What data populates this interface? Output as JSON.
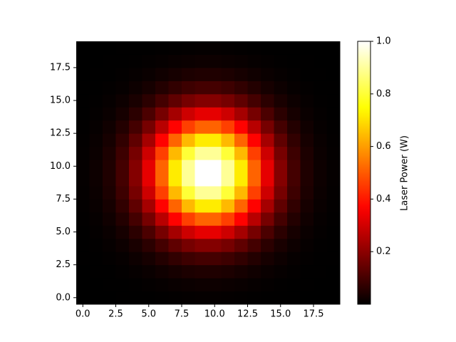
{
  "chart_data": {
    "type": "heatmap",
    "colormap": "hot",
    "colorbar_label": "Laser Power (W)",
    "x": [
      0,
      1,
      2,
      3,
      4,
      5,
      6,
      7,
      8,
      9,
      10,
      11,
      12,
      13,
      14,
      15,
      16,
      17,
      18,
      19
    ],
    "y": [
      0,
      1,
      2,
      3,
      4,
      5,
      6,
      7,
      8,
      9,
      10,
      11,
      12,
      13,
      14,
      15,
      16,
      17,
      18,
      19
    ],
    "values": [
      [
        0.0,
        0.0,
        0.0,
        0.001,
        0.001,
        0.002,
        0.003,
        0.005,
        0.006,
        0.007,
        0.007,
        0.006,
        0.005,
        0.003,
        0.002,
        0.001,
        0.001,
        0.0,
        0.0,
        0.0
      ],
      [
        0.0,
        0.0,
        0.001,
        0.002,
        0.003,
        0.006,
        0.009,
        0.013,
        0.016,
        0.018,
        0.018,
        0.016,
        0.013,
        0.009,
        0.006,
        0.003,
        0.002,
        0.001,
        0.0,
        0.0
      ],
      [
        0.0,
        0.001,
        0.002,
        0.004,
        0.008,
        0.015,
        0.023,
        0.032,
        0.04,
        0.045,
        0.045,
        0.04,
        0.032,
        0.023,
        0.015,
        0.008,
        0.004,
        0.002,
        0.001,
        0.0
      ],
      [
        0.001,
        0.002,
        0.004,
        0.009,
        0.018,
        0.032,
        0.05,
        0.07,
        0.087,
        0.097,
        0.097,
        0.087,
        0.07,
        0.05,
        0.032,
        0.018,
        0.009,
        0.004,
        0.002,
        0.001
      ],
      [
        0.001,
        0.003,
        0.008,
        0.018,
        0.036,
        0.062,
        0.097,
        0.136,
        0.169,
        0.189,
        0.189,
        0.169,
        0.136,
        0.097,
        0.062,
        0.036,
        0.018,
        0.008,
        0.003,
        0.001
      ],
      [
        0.002,
        0.006,
        0.015,
        0.032,
        0.062,
        0.108,
        0.169,
        0.236,
        0.294,
        0.329,
        0.329,
        0.294,
        0.236,
        0.169,
        0.108,
        0.062,
        0.032,
        0.015,
        0.006,
        0.002
      ],
      [
        0.003,
        0.009,
        0.023,
        0.05,
        0.097,
        0.169,
        0.263,
        0.368,
        0.459,
        0.513,
        0.513,
        0.459,
        0.368,
        0.263,
        0.169,
        0.097,
        0.05,
        0.023,
        0.009,
        0.003
      ],
      [
        0.005,
        0.013,
        0.032,
        0.07,
        0.136,
        0.236,
        0.368,
        0.514,
        0.642,
        0.717,
        0.717,
        0.642,
        0.514,
        0.368,
        0.236,
        0.136,
        0.07,
        0.032,
        0.013,
        0.005
      ],
      [
        0.006,
        0.016,
        0.04,
        0.087,
        0.169,
        0.294,
        0.459,
        0.642,
        0.801,
        0.895,
        0.895,
        0.801,
        0.642,
        0.459,
        0.294,
        0.169,
        0.087,
        0.04,
        0.016,
        0.006
      ],
      [
        0.007,
        0.018,
        0.045,
        0.097,
        0.189,
        0.329,
        0.513,
        0.717,
        0.895,
        1,
        1,
        0.895,
        0.717,
        0.513,
        0.329,
        0.189,
        0.097,
        0.045,
        0.018,
        0.007
      ],
      [
        0.007,
        0.018,
        0.045,
        0.097,
        0.189,
        0.329,
        0.513,
        0.717,
        0.895,
        1,
        1,
        0.895,
        0.717,
        0.513,
        0.329,
        0.189,
        0.097,
        0.045,
        0.018,
        0.007
      ],
      [
        0.006,
        0.016,
        0.04,
        0.087,
        0.169,
        0.294,
        0.459,
        0.642,
        0.801,
        0.895,
        0.895,
        0.801,
        0.642,
        0.459,
        0.294,
        0.169,
        0.087,
        0.04,
        0.016,
        0.006
      ],
      [
        0.005,
        0.013,
        0.032,
        0.07,
        0.136,
        0.236,
        0.368,
        0.514,
        0.642,
        0.717,
        0.717,
        0.642,
        0.514,
        0.368,
        0.236,
        0.136,
        0.07,
        0.032,
        0.013,
        0.005
      ],
      [
        0.003,
        0.009,
        0.023,
        0.05,
        0.097,
        0.169,
        0.263,
        0.368,
        0.459,
        0.513,
        0.513,
        0.459,
        0.368,
        0.263,
        0.169,
        0.097,
        0.05,
        0.023,
        0.009,
        0.003
      ],
      [
        0.002,
        0.006,
        0.015,
        0.032,
        0.062,
        0.108,
        0.169,
        0.236,
        0.294,
        0.329,
        0.329,
        0.294,
        0.236,
        0.169,
        0.108,
        0.062,
        0.032,
        0.015,
        0.006,
        0.002
      ],
      [
        0.001,
        0.003,
        0.008,
        0.018,
        0.036,
        0.062,
        0.097,
        0.136,
        0.169,
        0.189,
        0.189,
        0.169,
        0.136,
        0.097,
        0.062,
        0.036,
        0.018,
        0.008,
        0.003,
        0.001
      ],
      [
        0.001,
        0.002,
        0.004,
        0.009,
        0.018,
        0.032,
        0.05,
        0.07,
        0.087,
        0.097,
        0.097,
        0.087,
        0.07,
        0.05,
        0.032,
        0.018,
        0.009,
        0.004,
        0.002,
        0.001
      ],
      [
        0.0,
        0.001,
        0.002,
        0.004,
        0.008,
        0.015,
        0.023,
        0.032,
        0.04,
        0.045,
        0.045,
        0.04,
        0.032,
        0.023,
        0.015,
        0.008,
        0.004,
        0.002,
        0.001,
        0.0
      ],
      [
        0.0,
        0.0,
        0.001,
        0.002,
        0.003,
        0.006,
        0.009,
        0.013,
        0.016,
        0.018,
        0.018,
        0.016,
        0.013,
        0.009,
        0.006,
        0.003,
        0.002,
        0.001,
        0.0,
        0.0
      ],
      [
        0.0,
        0.0,
        0.0,
        0.001,
        0.001,
        0.002,
        0.003,
        0.005,
        0.006,
        0.007,
        0.007,
        0.006,
        0.005,
        0.003,
        0.002,
        0.001,
        0.001,
        0.0,
        0.0,
        0.0
      ]
    ],
    "xlim": [
      -0.5,
      19.5
    ],
    "ylim": [
      -0.5,
      19.5
    ],
    "xticks": [
      {
        "value": 0,
        "label": "0.0"
      },
      2.5,
      {
        "value": 5,
        "label": "5.0"
      },
      7.5,
      {
        "value": 10,
        "label": "10.0"
      },
      12.5,
      {
        "value": 15,
        "label": "15.0"
      },
      17.5
    ],
    "yticks": [
      {
        "value": 0,
        "label": "0.0"
      },
      2.5,
      {
        "value": 5,
        "label": "5.0"
      },
      7.5,
      {
        "value": 10,
        "label": "10.0"
      },
      12.5,
      {
        "value": 15,
        "label": "15.0"
      },
      17.5
    ],
    "clim": [
      0,
      1
    ],
    "cticks": [
      0.2,
      0.4,
      0.6,
      0.8,
      {
        "value": 1,
        "label": "1.0"
      }
    ]
  }
}
